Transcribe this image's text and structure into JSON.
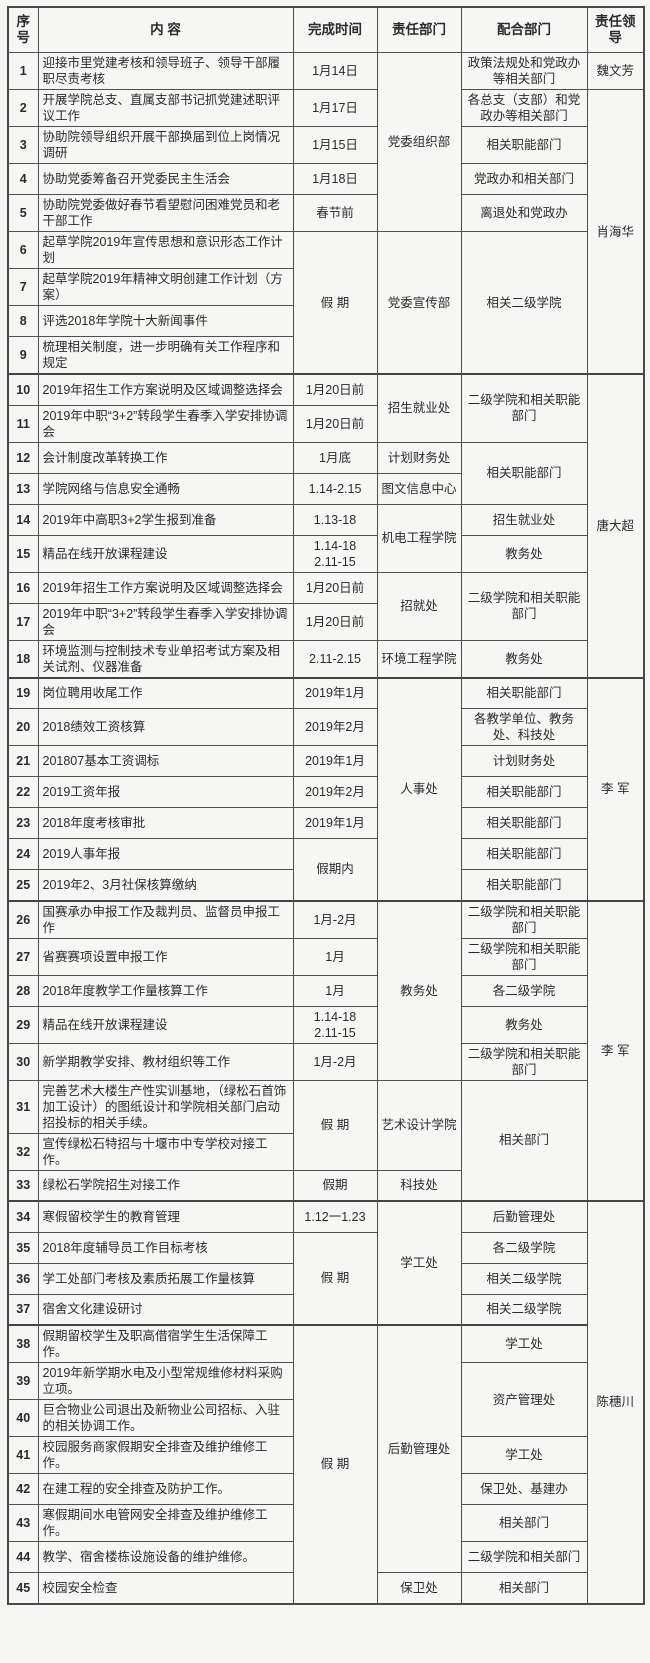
{
  "colors": {
    "border": "#4f4f4f",
    "text": "#2b2b2b",
    "background": "#f6f6f5"
  },
  "table": {
    "header": [
      "序号",
      "内 容",
      "完成时间",
      "责任部门",
      "配合部门",
      "责任领导"
    ],
    "rows": [
      {
        "no": "1",
        "content": "迎接市里党建考核和领导班子、领导干部履职尽责考核",
        "time": {
          "t": "1月14日",
          "s": 1
        },
        "dept": {
          "t": "党委组织部",
          "s": 5
        },
        "support": {
          "t": "政策法规处和党政办等相关部门",
          "s": 1
        },
        "leader": {
          "t": "魏文芳",
          "s": 1
        }
      },
      {
        "no": "2",
        "content": "开展学院总支、直属支部书记抓党建述职评议工作",
        "time": {
          "t": "1月17日",
          "s": 1
        },
        "dept": null,
        "support": {
          "t": "各总支（支部）和党政办等相关部门",
          "s": 1
        },
        "leader": {
          "t": "肖海华",
          "s": 8
        }
      },
      {
        "no": "3",
        "content": "协助院领导组织开展干部换届到位上岗情况调研",
        "time": {
          "t": "1月15日",
          "s": 1
        },
        "dept": null,
        "support": {
          "t": "相关职能部门",
          "s": 1
        },
        "leader": null
      },
      {
        "no": "4",
        "content": "协助党委筹备召开党委民主生活会",
        "time": {
          "t": "1月18日",
          "s": 1
        },
        "dept": null,
        "support": {
          "t": "党政办和相关部门",
          "s": 1
        },
        "leader": null
      },
      {
        "no": "5",
        "content": "协助院党委做好春节看望慰问困难党员和老干部工作",
        "time": {
          "t": "春节前",
          "s": 1
        },
        "dept": null,
        "support": {
          "t": "离退处和党政办",
          "s": 1
        },
        "leader": null
      },
      {
        "no": "6",
        "content": "起草学院2019年宣传思想和意识形态工作计划",
        "time": {
          "t": "假 期",
          "s": 4
        },
        "dept": {
          "t": "党委宣传部",
          "s": 4
        },
        "support": {
          "t": "相关二级学院",
          "s": 4
        },
        "leader": null
      },
      {
        "no": "7",
        "content": "起草学院2019年精神文明创建工作计划（方案）",
        "time": null,
        "dept": null,
        "support": null,
        "leader": null
      },
      {
        "no": "8",
        "content": "评选2018年学院十大新闻事件",
        "time": null,
        "dept": null,
        "support": null,
        "leader": null
      },
      {
        "no": "9",
        "content": "梳理相关制度，进一步明确有关工作程序和规定",
        "time": null,
        "dept": null,
        "support": null,
        "leader": null
      },
      {
        "no": "10",
        "content": "2019年招生工作方案说明及区域调整选择会",
        "time": {
          "t": "1月20日前",
          "s": 1
        },
        "dept": {
          "t": "招生就业处",
          "s": 2
        },
        "support": {
          "t": "二级学院和相关职能部门",
          "s": 2
        },
        "leader": {
          "t": "唐大超",
          "s": 9
        }
      },
      {
        "no": "11",
        "content": "2019年中职“3+2”转段学生春季入学安排协调会",
        "time": {
          "t": "1月20日前",
          "s": 1
        },
        "dept": null,
        "support": null,
        "leader": null
      },
      {
        "no": "12",
        "content": "会计制度改革转换工作",
        "time": {
          "t": "1月底",
          "s": 1
        },
        "dept": {
          "t": "计划财务处",
          "s": 1
        },
        "support": {
          "t": "相关职能部门",
          "s": 2
        },
        "leader": null
      },
      {
        "no": "13",
        "content": "学院网络与信息安全通畅",
        "time": {
          "t": "1.14-2.15",
          "s": 1
        },
        "dept": {
          "t": "图文信息中心",
          "s": 1
        },
        "support": null,
        "leader": null
      },
      {
        "no": "14",
        "content": "2019年中高职3+2学生报到准备",
        "time": {
          "t": "1.13-18",
          "s": 1
        },
        "dept": {
          "t": "机电工程学院",
          "s": 2
        },
        "support": {
          "t": "招生就业处",
          "s": 1
        },
        "leader": null
      },
      {
        "no": "15",
        "content": "精品在线开放课程建设",
        "time": {
          "t": "1.14-18\n2.11-15",
          "s": 1
        },
        "dept": null,
        "support": {
          "t": "教务处",
          "s": 1
        },
        "leader": null
      },
      {
        "no": "16",
        "content": "2019年招生工作方案说明及区域调整选择会",
        "time": {
          "t": "1月20日前",
          "s": 1
        },
        "dept": {
          "t": "招就处",
          "s": 2
        },
        "support": {
          "t": "二级学院和相关职能部门",
          "s": 2
        },
        "leader": null
      },
      {
        "no": "17",
        "content": "2019年中职“3+2”转段学生春季入学安排协调会",
        "time": {
          "t": "1月20日前",
          "s": 1
        },
        "dept": null,
        "support": null,
        "leader": null
      },
      {
        "no": "18",
        "content": "环境监测与控制技术专业单招考试方案及相关试剂、仪器准备",
        "time": {
          "t": "2.11-2.15",
          "s": 1
        },
        "dept": {
          "t": "环境工程学院",
          "s": 1
        },
        "support": {
          "t": "教务处",
          "s": 1
        },
        "leader": null
      },
      {
        "no": "19",
        "content": "岗位聘用收尾工作",
        "time": {
          "t": "2019年1月",
          "s": 1
        },
        "dept": {
          "t": "人事处",
          "s": 7
        },
        "support": {
          "t": "相关职能部门",
          "s": 1
        },
        "leader": {
          "t": "李 军",
          "s": 7
        }
      },
      {
        "no": "20",
        "content": "2018绩效工资核算",
        "time": {
          "t": "2019年2月",
          "s": 1
        },
        "dept": null,
        "support": {
          "t": "各教学单位、教务处、科技处",
          "s": 1
        },
        "leader": null
      },
      {
        "no": "21",
        "content": "201807基本工资调标",
        "time": {
          "t": "2019年1月",
          "s": 1
        },
        "dept": null,
        "support": {
          "t": "计划财务处",
          "s": 1
        },
        "leader": null
      },
      {
        "no": "22",
        "content": "2019工资年报",
        "time": {
          "t": "2019年2月",
          "s": 1
        },
        "dept": null,
        "support": {
          "t": "相关职能部门",
          "s": 1
        },
        "leader": null
      },
      {
        "no": "23",
        "content": "2018年度考核审批",
        "time": {
          "t": "2019年1月",
          "s": 1
        },
        "dept": null,
        "support": {
          "t": "相关职能部门",
          "s": 1
        },
        "leader": null
      },
      {
        "no": "24",
        "content": "2019人事年报",
        "time": {
          "t": "假期内",
          "s": 2
        },
        "dept": null,
        "support": {
          "t": "相关职能部门",
          "s": 1
        },
        "leader": null
      },
      {
        "no": "25",
        "content": "2019年2、3月社保核算缴纳",
        "time": null,
        "dept": null,
        "support": {
          "t": "相关职能部门",
          "s": 1
        },
        "leader": null
      },
      {
        "no": "26",
        "content": "国赛承办申报工作及裁判员、监督员申报工作",
        "time": {
          "t": "1月-2月",
          "s": 1
        },
        "dept": {
          "t": "教务处",
          "s": 5
        },
        "support": {
          "t": "二级学院和相关职能部门",
          "s": 1
        },
        "leader": {
          "t": "李 军",
          "s": 8
        }
      },
      {
        "no": "27",
        "content": "省赛赛项设置申报工作",
        "time": {
          "t": "1月",
          "s": 1
        },
        "dept": null,
        "support": {
          "t": "二级学院和相关职能部门",
          "s": 1
        },
        "leader": null
      },
      {
        "no": "28",
        "content": "2018年度教学工作量核算工作",
        "time": {
          "t": "1月",
          "s": 1
        },
        "dept": null,
        "support": {
          "t": "各二级学院",
          "s": 1
        },
        "leader": null
      },
      {
        "no": "29",
        "content": "精品在线开放课程建设",
        "time": {
          "t": "1.14-18\n2.11-15",
          "s": 1
        },
        "dept": null,
        "support": {
          "t": "教务处",
          "s": 1
        },
        "leader": null
      },
      {
        "no": "30",
        "content": "新学期教学安排、教材组织等工作",
        "time": {
          "t": "1月-2月",
          "s": 1
        },
        "dept": null,
        "support": {
          "t": "二级学院和相关职能部门",
          "s": 1
        },
        "leader": null
      },
      {
        "no": "31",
        "content": "完善艺术大楼生产性实训基地，（绿松石首饰加工设计）的图纸设计和学院相关部门启动招投标的相关手续。",
        "time": {
          "t": "假 期",
          "s": 2
        },
        "dept": {
          "t": "艺术设计学院",
          "s": 2
        },
        "support": {
          "t": "相关部门",
          "s": 3
        },
        "leader": null
      },
      {
        "no": "32",
        "content": "宣传绿松石特招与十堰市中专学校对接工作。",
        "time": null,
        "dept": null,
        "support": null,
        "leader": null
      },
      {
        "no": "33",
        "content": "绿松石学院招生对接工作",
        "time": {
          "t": "假期",
          "s": 1
        },
        "dept": {
          "t": "科技处",
          "s": 1
        },
        "support": null,
        "leader": null
      },
      {
        "no": "34",
        "content": "寒假留校学生的教育管理",
        "time": {
          "t": "1.12一1.23",
          "s": 1
        },
        "dept": {
          "t": "学工处",
          "s": 4
        },
        "support": {
          "t": "后勤管理处",
          "s": 1
        },
        "leader": {
          "t": "陈穗川",
          "s": 12
        }
      },
      {
        "no": "35",
        "content": "2018年度辅导员工作目标考核",
        "time": {
          "t": "假 期",
          "s": 3
        },
        "dept": null,
        "support": {
          "t": "各二级学院",
          "s": 1
        },
        "leader": null
      },
      {
        "no": "36",
        "content": "学工处部门考核及素质拓展工作量核算",
        "time": null,
        "dept": null,
        "support": {
          "t": "相关二级学院",
          "s": 1
        },
        "leader": null
      },
      {
        "no": "37",
        "content": "宿舍文化建设研讨",
        "time": null,
        "dept": null,
        "support": {
          "t": "相关二级学院",
          "s": 1
        },
        "leader": null
      },
      {
        "no": "38",
        "content": "假期留校学生及职高借宿学生生活保障工作。",
        "time": {
          "t": "假 期",
          "s": 8
        },
        "dept": {
          "t": "后勤管理处",
          "s": 7
        },
        "support": {
          "t": "学工处",
          "s": 1
        },
        "leader": null
      },
      {
        "no": "39",
        "content": "2019年新学期水电及小型常规维修材料采购立项。",
        "time": null,
        "dept": null,
        "support": {
          "t": "资产管理处",
          "s": 2
        },
        "leader": null
      },
      {
        "no": "40",
        "content": "巨合物业公司退出及新物业公司招标、入驻的相关协调工作。",
        "time": null,
        "dept": null,
        "support": null,
        "leader": null
      },
      {
        "no": "41",
        "content": "校园服务商家假期安全排查及维护维修工作。",
        "time": null,
        "dept": null,
        "support": {
          "t": "学工处",
          "s": 1
        },
        "leader": null
      },
      {
        "no": "42",
        "content": "在建工程的安全排查及防护工作。",
        "time": null,
        "dept": null,
        "support": {
          "t": "保卫处、基建办",
          "s": 1
        },
        "leader": null
      },
      {
        "no": "43",
        "content": "寒假期间水电管网安全排查及维护维修工作。",
        "time": null,
        "dept": null,
        "support": {
          "t": "相关部门",
          "s": 1
        },
        "leader": null
      },
      {
        "no": "44",
        "content": "教学、宿舍楼栋设施设备的维护维修。",
        "time": null,
        "dept": null,
        "support": {
          "t": "二级学院和相关部门",
          "s": 1
        },
        "leader": null
      },
      {
        "no": "45",
        "content": "校园安全检查",
        "time": null,
        "dept": {
          "t": "保卫处",
          "s": 1
        },
        "support": {
          "t": "相关部门",
          "s": 1
        },
        "leader": null
      }
    ]
  }
}
